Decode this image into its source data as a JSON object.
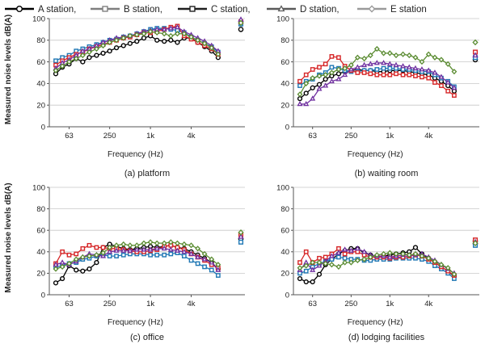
{
  "legend": [
    {
      "name": "A station,",
      "color": "#000000",
      "marker": "circle"
    },
    {
      "name": "B station,",
      "color": "#7f7f7f",
      "marker": "square"
    },
    {
      "name": "C station,",
      "color": "#1f1f1f",
      "marker": "square"
    },
    {
      "name": "D station,",
      "color": "#5a5a5a",
      "marker": "triangle"
    },
    {
      "name": "E station",
      "color": "#9a9a9a",
      "marker": "diamond"
    }
  ],
  "shared_ylabel": "Measured noise levels dB(A)",
  "chart_data": [
    {
      "type": "line",
      "caption": "(a) platform",
      "xlabel": "Frequency (Hz)",
      "ylabel": "Measured noise levels dB(A)",
      "xscale": "log-octave",
      "x": [
        40,
        50,
        63,
        80,
        100,
        125,
        160,
        200,
        250,
        315,
        400,
        500,
        630,
        800,
        1000,
        1250,
        1600,
        2000,
        2500,
        3150,
        4000,
        5000,
        6300,
        8000,
        10000
      ],
      "xticks": [
        {
          "value": 63,
          "label": "63"
        },
        {
          "value": 250,
          "label": "250"
        },
        {
          "value": 1000,
          "label": "1k"
        },
        {
          "value": 4000,
          "label": "4k"
        }
      ],
      "ylim": [
        0,
        100
      ],
      "yticks": [
        0,
        20,
        40,
        60,
        80,
        100
      ],
      "series": [
        {
          "name": "A station",
          "color": "#000000",
          "marker": "circle",
          "values": [
            49,
            55,
            58,
            63,
            60,
            64,
            66,
            68,
            70,
            73,
            75,
            77,
            79,
            82,
            84,
            80,
            79,
            80,
            78,
            82,
            82,
            78,
            74,
            70,
            64
          ],
          "overall": 90
        },
        {
          "name": "B station",
          "color": "#1f77b4",
          "marker": "square",
          "values": [
            61,
            64,
            66,
            70,
            72,
            74,
            76,
            78,
            80,
            81,
            83,
            84,
            86,
            88,
            90,
            91,
            91,
            90,
            89,
            87,
            83,
            80,
            77,
            74,
            69
          ],
          "overall": 95
        },
        {
          "name": "C station",
          "color": "#d62728",
          "marker": "square",
          "values": [
            57,
            61,
            64,
            67,
            69,
            72,
            74,
            76,
            78,
            80,
            82,
            83,
            85,
            87,
            87,
            88,
            90,
            92,
            93,
            84,
            81,
            78,
            75,
            72,
            67
          ],
          "overall": 97
        },
        {
          "name": "D station",
          "color": "#7030a0",
          "marker": "triangle",
          "values": [
            54,
            59,
            62,
            66,
            70,
            72,
            75,
            78,
            80,
            82,
            83,
            84,
            86,
            88,
            89,
            90,
            90,
            91,
            92,
            88,
            85,
            82,
            79,
            75,
            70
          ],
          "overall": 99
        },
        {
          "name": "E station",
          "color": "#5b8c32",
          "marker": "diamond",
          "values": [
            52,
            56,
            60,
            63,
            66,
            69,
            72,
            75,
            78,
            80,
            82,
            84,
            85,
            86,
            88,
            87,
            86,
            84,
            86,
            86,
            83,
            80,
            77,
            73,
            67
          ],
          "overall": 96
        }
      ]
    },
    {
      "type": "line",
      "caption": "(b) waiting room",
      "xlabel": "Frequency (Hz)",
      "ylabel": "",
      "xscale": "log-octave",
      "x": [
        40,
        50,
        63,
        80,
        100,
        125,
        160,
        200,
        250,
        315,
        400,
        500,
        630,
        800,
        1000,
        1250,
        1600,
        2000,
        2500,
        3150,
        4000,
        5000,
        6300,
        8000,
        10000
      ],
      "xticks": [
        {
          "value": 63,
          "label": "63"
        },
        {
          "value": 250,
          "label": "250"
        },
        {
          "value": 1000,
          "label": "1k"
        },
        {
          "value": 4000,
          "label": "4k"
        }
      ],
      "ylim": [
        0,
        100
      ],
      "yticks": [
        0,
        20,
        40,
        60,
        80,
        100
      ],
      "series": [
        {
          "name": "A station",
          "color": "#000000",
          "marker": "circle",
          "values": [
            26,
            31,
            36,
            39,
            44,
            47,
            49,
            51,
            52,
            53,
            52,
            52,
            51,
            51,
            52,
            52,
            52,
            51,
            50,
            49,
            48,
            45,
            42,
            38,
            33
          ],
          "overall": 62
        },
        {
          "name": "B station",
          "color": "#1f77b4",
          "marker": "square",
          "values": [
            38,
            42,
            44,
            48,
            50,
            55,
            54,
            52,
            51,
            51,
            52,
            52,
            53,
            54,
            54,
            54,
            53,
            53,
            52,
            51,
            51,
            48,
            45,
            42,
            37
          ],
          "overall": 64
        },
        {
          "name": "C station",
          "color": "#d62728",
          "marker": "square",
          "values": [
            42,
            48,
            53,
            55,
            58,
            65,
            64,
            56,
            52,
            50,
            50,
            49,
            48,
            48,
            48,
            49,
            48,
            48,
            47,
            46,
            45,
            41,
            38,
            33,
            29
          ],
          "overall": 69
        },
        {
          "name": "D station",
          "color": "#7030a0",
          "marker": "triangle",
          "values": [
            21,
            21,
            26,
            35,
            38,
            42,
            44,
            48,
            53,
            55,
            57,
            58,
            59,
            59,
            58,
            57,
            56,
            55,
            54,
            53,
            52,
            50,
            46,
            41,
            36
          ],
          "overall": 66
        },
        {
          "name": "E station",
          "color": "#5b8c32",
          "marker": "diamond",
          "values": [
            30,
            40,
            45,
            47,
            48,
            50,
            53,
            54,
            57,
            64,
            63,
            66,
            72,
            68,
            68,
            66,
            67,
            66,
            64,
            60,
            67,
            64,
            62,
            58,
            51
          ],
          "overall": 78
        }
      ]
    },
    {
      "type": "line",
      "caption": "(c) office",
      "xlabel": "Frequency (Hz)",
      "ylabel": "Measured noise levels dB(A)",
      "xscale": "log-octave",
      "x": [
        40,
        50,
        63,
        80,
        100,
        125,
        160,
        200,
        250,
        315,
        400,
        500,
        630,
        800,
        1000,
        1250,
        1600,
        2000,
        2500,
        3150,
        4000,
        5000,
        6300,
        8000,
        10000
      ],
      "xticks": [
        {
          "value": 63,
          "label": "63"
        },
        {
          "value": 250,
          "label": "250"
        },
        {
          "value": 1000,
          "label": "1k"
        },
        {
          "value": 4000,
          "label": "4k"
        }
      ],
      "ylim": [
        0,
        100
      ],
      "yticks": [
        0,
        20,
        40,
        60,
        80,
        100
      ],
      "series": [
        {
          "name": "A station",
          "color": "#000000",
          "marker": "circle",
          "values": [
            11,
            15,
            27,
            23,
            22,
            24,
            30,
            44,
            47,
            45,
            43,
            42,
            43,
            44,
            45,
            44,
            45,
            46,
            44,
            43,
            40,
            37,
            34,
            30,
            24
          ],
          "overall": 52
        },
        {
          "name": "B station",
          "color": "#1f77b4",
          "marker": "square",
          "values": [
            26,
            27,
            29,
            30,
            33,
            34,
            36,
            37,
            36,
            36,
            37,
            38,
            38,
            38,
            37,
            37,
            37,
            38,
            39,
            36,
            32,
            29,
            26,
            23,
            18
          ],
          "overall": 49
        },
        {
          "name": "C station",
          "color": "#d62728",
          "marker": "square",
          "values": [
            29,
            40,
            37,
            38,
            43,
            46,
            44,
            44,
            43,
            43,
            42,
            41,
            40,
            40,
            41,
            42,
            45,
            46,
            44,
            42,
            38,
            35,
            32,
            28,
            25
          ],
          "overall": 56
        },
        {
          "name": "D station",
          "color": "#7030a0",
          "marker": "triangle",
          "values": [
            28,
            30,
            28,
            31,
            35,
            38,
            37,
            36,
            40,
            41,
            41,
            41,
            42,
            42,
            42,
            43,
            43,
            42,
            41,
            40,
            38,
            35,
            33,
            30,
            23
          ],
          "overall": 54
        },
        {
          "name": "E station",
          "color": "#5b8c32",
          "marker": "diamond",
          "values": [
            24,
            26,
            29,
            33,
            35,
            36,
            37,
            39,
            44,
            46,
            47,
            46,
            46,
            48,
            49,
            48,
            48,
            49,
            48,
            47,
            46,
            43,
            38,
            33,
            28
          ],
          "overall": 58
        }
      ]
    },
    {
      "type": "line",
      "caption": "(d) lodging facilities",
      "xlabel": "Frequency (Hz)",
      "ylabel": "",
      "xscale": "log-octave",
      "x": [
        40,
        50,
        63,
        80,
        100,
        125,
        160,
        200,
        250,
        315,
        400,
        500,
        630,
        800,
        1000,
        1250,
        1600,
        2000,
        2500,
        3150,
        4000,
        5000,
        6300,
        8000,
        10000
      ],
      "xticks": [
        {
          "value": 63,
          "label": "63"
        },
        {
          "value": 250,
          "label": "250"
        },
        {
          "value": 1000,
          "label": "1k"
        },
        {
          "value": 4000,
          "label": "4k"
        }
      ],
      "ylim": [
        0,
        100
      ],
      "yticks": [
        0,
        20,
        40,
        60,
        80,
        100
      ],
      "series": [
        {
          "name": "A station",
          "color": "#000000",
          "marker": "circle",
          "values": [
            15,
            12,
            12,
            19,
            28,
            33,
            38,
            41,
            43,
            43,
            39,
            37,
            36,
            36,
            37,
            38,
            39,
            40,
            44,
            38,
            34,
            30,
            26,
            22,
            17
          ],
          "overall": 50
        },
        {
          "name": "B station",
          "color": "#1f77b4",
          "marker": "square",
          "values": [
            20,
            22,
            26,
            29,
            31,
            33,
            35,
            34,
            33,
            33,
            32,
            32,
            33,
            33,
            33,
            34,
            34,
            34,
            34,
            33,
            31,
            27,
            24,
            20,
            15
          ],
          "overall": 46
        },
        {
          "name": "C station",
          "color": "#d62728",
          "marker": "square",
          "values": [
            30,
            40,
            30,
            34,
            35,
            38,
            43,
            38,
            40,
            40,
            37,
            35,
            35,
            35,
            34,
            35,
            35,
            36,
            37,
            36,
            33,
            30,
            26,
            22,
            18
          ],
          "overall": 51
        },
        {
          "name": "D station",
          "color": "#7030a0",
          "marker": "triangle",
          "values": [
            23,
            30,
            23,
            27,
            31,
            36,
            39,
            42,
            41,
            43,
            40,
            37,
            36,
            36,
            35,
            36,
            37,
            37,
            37,
            38,
            35,
            32,
            28,
            24,
            20
          ],
          "overall": 49
        },
        {
          "name": "E station",
          "color": "#5b8c32",
          "marker": "diamond",
          "values": [
            25,
            27,
            30,
            30,
            29,
            28,
            26,
            30,
            30,
            32,
            33,
            35,
            37,
            38,
            39,
            38,
            38,
            37,
            38,
            36,
            34,
            31,
            28,
            25,
            19
          ],
          "overall": 48
        }
      ]
    }
  ]
}
